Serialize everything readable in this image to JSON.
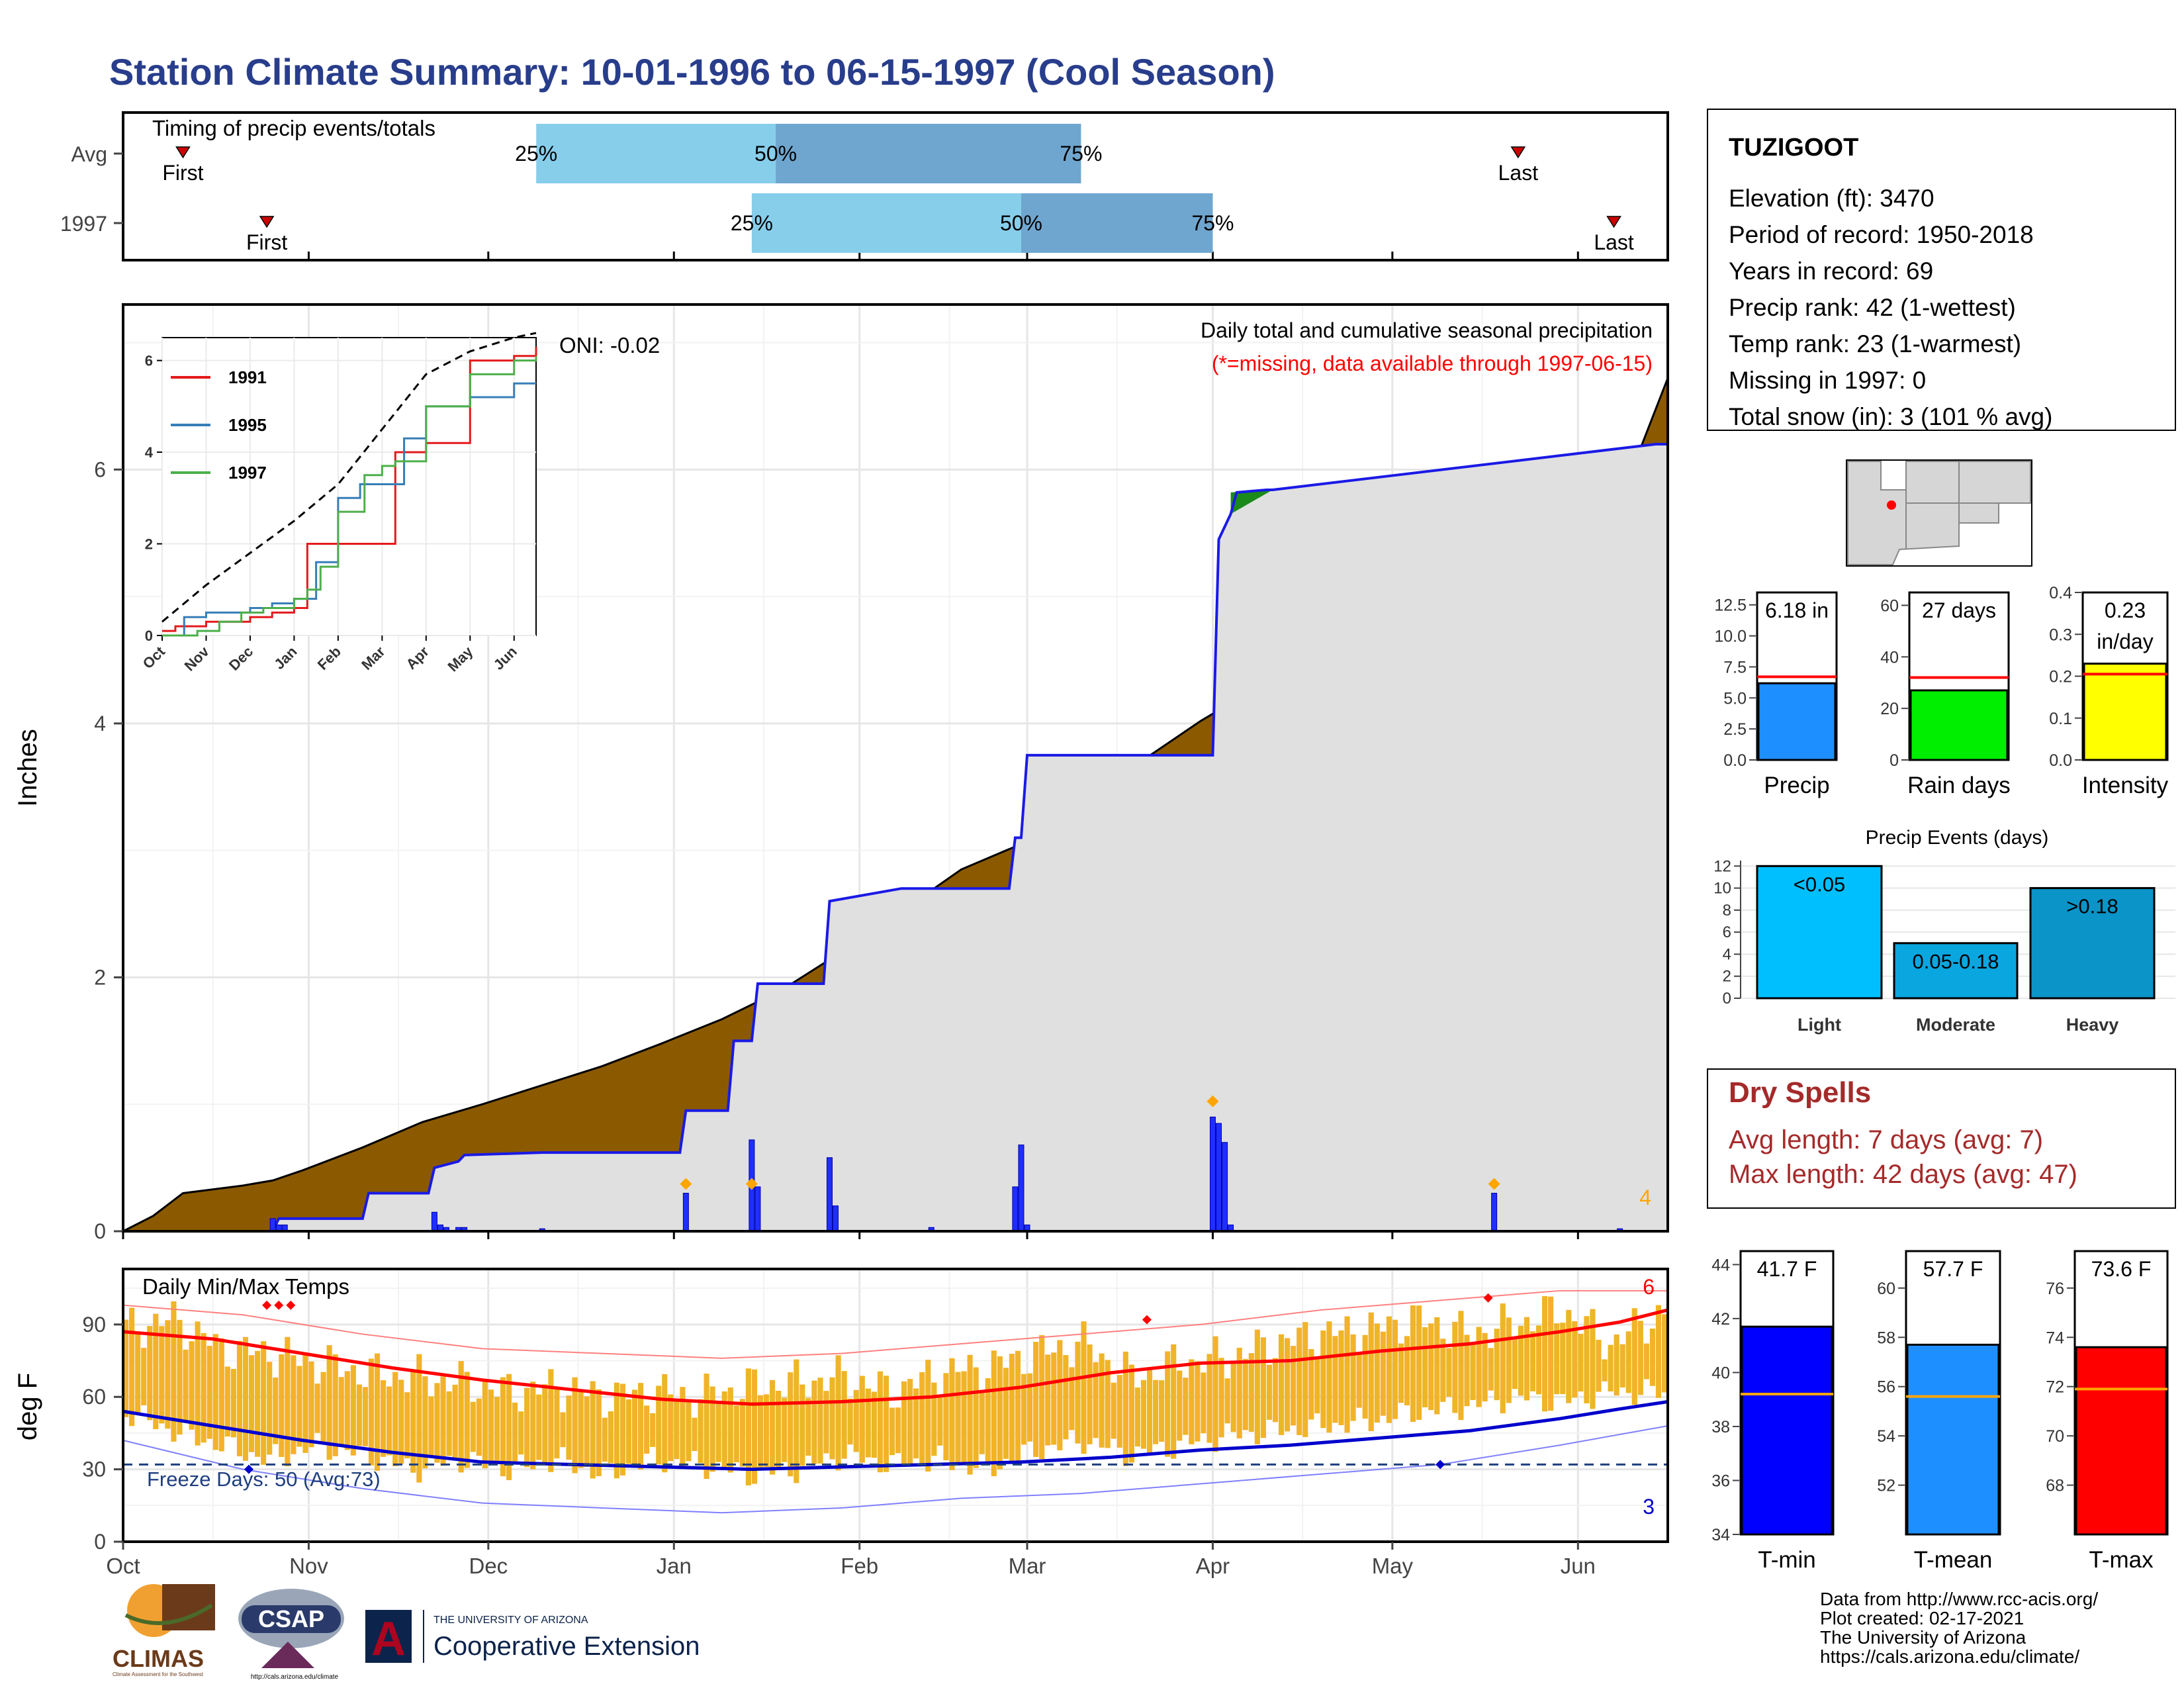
{
  "title": "Station Climate Summary: 10-01-1996 to 06-15-1997 (Cool Season)",
  "colors": {
    "title": "#283d8b",
    "precip_cum": "#8b5a00",
    "avg_cum_fill": "#e0e0e0",
    "daily_bar": "#1f2fff",
    "event_marker": "#ffa500",
    "temp_bar": "#f0b429",
    "tmax_avg": "#ff0000",
    "tmin_avg": "#0000cc",
    "dry_spell": "#a52a2a",
    "missing_note": "#ff0000"
  },
  "months": [
    "Oct",
    "Nov",
    "Dec",
    "Jan",
    "Feb",
    "Mar",
    "Apr",
    "May",
    "Jun"
  ],
  "timing": {
    "title": "Timing of precip events/totals",
    "rows": [
      {
        "label": "Avg",
        "first_label": "First",
        "last_label": "Last",
        "first_day": 10,
        "last_day": 233,
        "p25": 69,
        "p50": 109,
        "p75": 160
      },
      {
        "label": "1997",
        "first_label": "First",
        "last_label": "Last",
        "first_day": 24,
        "last_day": 249,
        "p25": 105,
        "p50": 150,
        "p75": 182
      }
    ],
    "pct_labels": [
      "25%",
      "50%",
      "75%"
    ]
  },
  "precip": {
    "ylabel": "Inches",
    "note": "Daily total and cumulative seasonal precipitation",
    "missing_note": "(*=missing, data available through 1997-06-15)",
    "oni": "ONI: -0.02",
    "count_label": "4",
    "yticks": [
      "0",
      "2",
      "4",
      "6"
    ],
    "ylim": [
      0,
      7.3
    ]
  },
  "chart_data": [
    {
      "type": "area",
      "name": "cumulative seasonal precipitation",
      "x_units": "day of season (0 = Oct 1)",
      "xlim": [
        0,
        258
      ],
      "ylim": [
        0,
        7.3
      ],
      "series": [
        {
          "name": "avg cumulative",
          "x": [
            0,
            5,
            10,
            15,
            20,
            25,
            30,
            40,
            50,
            60,
            70,
            80,
            90,
            100,
            110,
            120,
            130,
            140,
            150,
            160,
            170,
            180,
            190,
            200,
            210,
            220,
            230,
            240,
            250,
            258
          ],
          "values": [
            0,
            0.12,
            0.3,
            0.33,
            0.36,
            0.4,
            0.48,
            0.66,
            0.86,
            1.0,
            1.15,
            1.3,
            1.48,
            1.67,
            1.9,
            2.2,
            2.52,
            2.85,
            3.05,
            3.4,
            3.7,
            4.02,
            4.3,
            4.6,
            4.95,
            5.3,
            5.55,
            5.85,
            5.75,
            6.72
          ]
        },
        {
          "name": "1997 cumulative",
          "x": [
            0,
            25,
            26,
            40,
            41,
            51,
            52,
            56,
            57,
            70,
            71,
            93,
            94,
            101,
            102,
            105,
            106,
            117,
            118,
            130,
            131,
            148,
            149,
            150,
            151,
            182,
            183,
            185,
            186,
            191,
            192,
            256,
            258
          ],
          "values": [
            0,
            0,
            0.1,
            0.1,
            0.3,
            0.3,
            0.5,
            0.55,
            0.6,
            0.62,
            0.62,
            0.62,
            0.95,
            0.95,
            1.5,
            1.5,
            1.95,
            1.95,
            2.6,
            2.7,
            2.7,
            2.7,
            3.1,
            3.1,
            3.75,
            3.75,
            5.45,
            5.65,
            5.82,
            5.84,
            5.84,
            6.2,
            6.2
          ]
        }
      ],
      "daily_bars": {
        "x": [
          25,
          26,
          27,
          52,
          53,
          54,
          56,
          57,
          70,
          94,
          105,
          106,
          118,
          119,
          135,
          149,
          150,
          151,
          182,
          183,
          184,
          185,
          229,
          250
        ],
        "values": [
          0.1,
          0.05,
          0.05,
          0.15,
          0.05,
          0.03,
          0.03,
          0.03,
          0.02,
          0.3,
          0.72,
          0.35,
          0.58,
          0.2,
          0.03,
          0.35,
          0.68,
          0.05,
          0.9,
          0.85,
          0.7,
          0.05,
          0.3,
          0.02
        ]
      },
      "event_markers": {
        "x": [
          94,
          105,
          182,
          229
        ],
        "values": [
          0.3,
          0.3,
          0.95,
          0.3
        ]
      }
    },
    {
      "type": "line",
      "name": "inset cumulative comparison",
      "x_units": "month index (0 = Oct)",
      "xlim": [
        0,
        8.5
      ],
      "ylim": [
        0,
        6.5
      ],
      "yticks": [
        0,
        2,
        4,
        6
      ],
      "series": [
        {
          "name": "1991",
          "x": [
            0,
            0.3,
            1,
            2,
            2.5,
            3,
            3.3,
            3.6,
            4,
            4.6,
            5,
            5.3,
            6,
            7,
            8,
            8.5
          ],
          "values": [
            0.1,
            0.2,
            0.3,
            0.4,
            0.5,
            0.6,
            2.0,
            2.0,
            2.0,
            2.0,
            2.0,
            4.0,
            4.2,
            6.0,
            6.1,
            6.3
          ]
        },
        {
          "name": "1995",
          "x": [
            0,
            0.5,
            1,
            2,
            2.5,
            3,
            3.5,
            4,
            4.5,
            5,
            5.5,
            6,
            7,
            8,
            8.5
          ],
          "values": [
            0,
            0.4,
            0.5,
            0.6,
            0.7,
            0.8,
            1.6,
            3.0,
            3.3,
            3.3,
            4.3,
            5.0,
            5.2,
            5.5,
            5.5
          ]
        },
        {
          "name": "1997",
          "x": [
            0,
            0.8,
            1.3,
            1.8,
            2.3,
            3,
            3.3,
            3.6,
            4,
            4.6,
            5,
            5.3,
            6,
            7,
            8,
            8.5
          ],
          "values": [
            0,
            0.1,
            0.3,
            0.5,
            0.6,
            0.8,
            1.0,
            1.5,
            2.7,
            3.5,
            3.7,
            3.8,
            5.0,
            5.7,
            6.0,
            6.1
          ]
        },
        {
          "name": "avg",
          "x": [
            0,
            1,
            2,
            3,
            4,
            5,
            6,
            7,
            8,
            8.5
          ],
          "values": [
            0.3,
            1.1,
            1.8,
            2.5,
            3.3,
            4.5,
            5.7,
            6.2,
            6.5,
            6.6
          ]
        }
      ]
    },
    {
      "type": "bar",
      "name": "season totals",
      "series": [
        {
          "name": "Precip",
          "value": 6.18,
          "avg": 6.7,
          "ylim": [
            0,
            13.5
          ],
          "yticks": [
            "0.0",
            "2.5",
            "5.0",
            "7.5",
            "10.0",
            "12.5"
          ]
        },
        {
          "name": "Rain days",
          "value": 27,
          "avg": 32,
          "ylim": [
            0,
            65
          ],
          "yticks": [
            "0",
            "20",
            "40",
            "60"
          ]
        },
        {
          "name": "Intensity",
          "value": 0.23,
          "avg": 0.205,
          "ylim": [
            0,
            0.4
          ],
          "yticks": [
            "0.0",
            "0.1",
            "0.2",
            "0.3",
            "0.4"
          ]
        }
      ]
    },
    {
      "type": "bar",
      "name": "Precip Events (days)",
      "categories": [
        "Light",
        "Moderate",
        "Heavy"
      ],
      "values": [
        12,
        5,
        10
      ],
      "ylim": [
        0,
        12.5
      ],
      "yticks": [
        "0",
        "2",
        "4",
        "6",
        "8",
        "10",
        "12"
      ]
    },
    {
      "type": "bar",
      "name": "temperature means",
      "series": [
        {
          "name": "T-min",
          "value": 41.7,
          "avg": 39.2,
          "ylim": [
            34,
            44.5
          ],
          "yticks": [
            "34",
            "36",
            "38",
            "40",
            "42",
            "44"
          ]
        },
        {
          "name": "T-mean",
          "value": 57.7,
          "avg": 55.6,
          "ylim": [
            50,
            61.5
          ],
          "yticks": [
            "52",
            "54",
            "56",
            "58",
            "60"
          ]
        },
        {
          "name": "T-max",
          "value": 73.6,
          "avg": 71.9,
          "ylim": [
            66,
            77.5
          ],
          "yticks": [
            "68",
            "70",
            "72",
            "74",
            "76"
          ]
        }
      ]
    }
  ],
  "inset": {
    "legend": [
      "1991",
      "1995",
      "1997"
    ],
    "months": [
      "Oct",
      "Nov",
      "Dec",
      "Jan",
      "Feb",
      "Mar",
      "Apr",
      "May",
      "Jun"
    ],
    "yticks": [
      "0",
      "2",
      "4",
      "6"
    ]
  },
  "temps": {
    "title": "Daily Min/Max Temps",
    "ylabel": "deg F",
    "yticks": [
      "0",
      "30",
      "60",
      "90"
    ],
    "freeze": "Freeze Days: 50 (Avg:73)",
    "count_high": "6",
    "count_low": "3",
    "avg_max": {
      "x": [
        0,
        15,
        30,
        45,
        60,
        75,
        90,
        105,
        120,
        135,
        150,
        165,
        180,
        195,
        210,
        225,
        240,
        250,
        258
      ],
      "values": [
        87,
        84,
        78,
        72,
        67,
        63,
        59,
        57,
        58,
        60,
        64,
        70,
        74,
        75,
        79,
        82,
        87,
        91,
        96
      ]
    },
    "avg_min": {
      "x": [
        0,
        15,
        30,
        45,
        60,
        75,
        90,
        105,
        120,
        135,
        150,
        165,
        180,
        195,
        210,
        225,
        240,
        250,
        258
      ],
      "values": [
        54,
        48,
        42,
        37,
        33,
        32,
        31,
        30,
        31,
        32,
        33,
        35,
        38,
        40,
        43,
        46,
        51,
        55,
        58
      ]
    },
    "series_max": {
      "x": [
        0,
        8,
        16,
        24,
        32,
        40,
        48,
        56,
        64,
        72,
        80,
        88,
        96,
        104,
        112,
        120,
        128,
        136,
        144,
        152,
        160,
        168,
        176,
        184,
        192,
        200,
        208,
        216,
        224,
        232,
        240,
        248,
        256
      ],
      "values": [
        88,
        92,
        80,
        78,
        74,
        70,
        68,
        66,
        62,
        64,
        60,
        62,
        60,
        64,
        66,
        68,
        62,
        70,
        72,
        78,
        82,
        68,
        74,
        76,
        82,
        86,
        88,
        92,
        86,
        90,
        96,
        82,
        94
      ]
    },
    "series_min": {
      "x": [
        0,
        8,
        16,
        24,
        32,
        40,
        48,
        56,
        64,
        72,
        80,
        88,
        96,
        104,
        112,
        120,
        128,
        136,
        144,
        152,
        160,
        168,
        176,
        184,
        192,
        200,
        208,
        216,
        224,
        232,
        240,
        248,
        256
      ],
      "values": [
        54,
        46,
        40,
        34,
        40,
        36,
        30,
        34,
        30,
        34,
        28,
        34,
        32,
        28,
        30,
        36,
        32,
        34,
        30,
        38,
        42,
        36,
        40,
        44,
        46,
        48,
        50,
        54,
        56,
        60,
        58,
        62,
        62
      ]
    },
    "record_max": {
      "x": [
        0,
        20,
        40,
        60,
        80,
        100,
        120,
        140,
        160,
        180,
        200,
        220,
        240,
        258
      ],
      "values": [
        98,
        94,
        86,
        80,
        78,
        76,
        78,
        82,
        86,
        90,
        96,
        100,
        104,
        104
      ]
    },
    "record_min": {
      "x": [
        0,
        20,
        40,
        60,
        80,
        100,
        120,
        140,
        160,
        180,
        200,
        220,
        240,
        258
      ],
      "values": [
        42,
        30,
        22,
        16,
        14,
        12,
        14,
        18,
        20,
        24,
        28,
        32,
        40,
        48
      ]
    },
    "freeze_avg_y": 32
  },
  "station": {
    "name": "TUZIGOOT",
    "lines": [
      "Elevation (ft): 3470",
      "Period of record: 1950-2018",
      "Years in record: 69",
      "Precip rank: 42 (1-wettest)",
      "Temp rank: 23 (1-warmest)",
      "Missing in 1997: 0",
      "Total snow (in): 3 (101 % avg)"
    ]
  },
  "bars_top": {
    "labels": [
      "Precip",
      "Rain days",
      "Intensity"
    ],
    "values": [
      "6.18 in",
      "27 days",
      "0.23",
      "in/day"
    ]
  },
  "events": {
    "title": "Precip Events (days)",
    "labels": [
      "<0.05",
      "0.05-0.18",
      ">0.18"
    ],
    "categories": [
      "Light",
      "Moderate",
      "Heavy"
    ]
  },
  "dry": {
    "title": "Dry Spells",
    "lines": [
      "Avg length: 7 days (avg: 7)",
      "Max length: 42 days (avg: 47)"
    ]
  },
  "temp_bars": {
    "labels": [
      "T-min",
      "T-mean",
      "T-max"
    ],
    "values": [
      "41.7 F",
      "57.7 F",
      "73.6 F"
    ]
  },
  "footer": {
    "lines": [
      "Data from http://www.rcc-acis.org/",
      "Plot created: 02-17-2021",
      "The University of Arizona",
      "https://cals.arizona.edu/climate/"
    ],
    "logos": {
      "climas": "CLIMAS",
      "climas_sub": "Climate Assessment for the Southwest",
      "csap": "CSAP",
      "csap_url": "http://cals.arizona.edu/climate",
      "ua_top": "THE UNIVERSITY OF ARIZONA",
      "ua_main": "Cooperative Extension",
      "ua_letter": "A"
    }
  }
}
